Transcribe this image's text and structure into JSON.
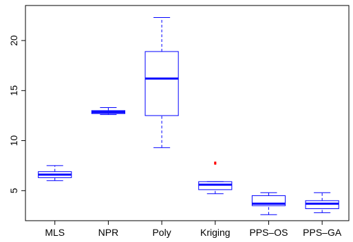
{
  "chart_data": {
    "type": "boxplot",
    "title": "",
    "xlabel": "",
    "ylabel": "",
    "ylim": [
      2.0,
      23.5
    ],
    "yticks": [
      5,
      10,
      15,
      20
    ],
    "ytick_labels": [
      "5",
      "10",
      "15",
      "20"
    ],
    "grid": false,
    "legend": "none",
    "box_color": "#0000ff",
    "outlier_color": "#ff0000",
    "categories": [
      "MLS",
      "NPR",
      "Poly",
      "Kriging",
      "PPS–OS",
      "PPS–GA"
    ],
    "boxes": [
      {
        "label": "MLS",
        "whisker_low": 6.0,
        "q1": 6.3,
        "median": 6.6,
        "q3": 6.9,
        "whisker_high": 7.5,
        "outliers": []
      },
      {
        "label": "NPR",
        "whisker_low": 12.6,
        "q1": 12.7,
        "median": 12.85,
        "q3": 13.0,
        "whisker_high": 13.3,
        "outliers": []
      },
      {
        "label": "Poly",
        "whisker_low": 9.3,
        "q1": 12.5,
        "median": 16.2,
        "q3": 18.9,
        "whisker_high": 22.3,
        "outliers": []
      },
      {
        "label": "Kriging",
        "whisker_low": 4.7,
        "q1": 5.1,
        "median": 5.6,
        "q3": 5.9,
        "whisker_high": 5.9,
        "outliers": [
          7.7,
          7.8
        ]
      },
      {
        "label": "PPS–OS",
        "whisker_low": 2.6,
        "q1": 3.5,
        "median": 3.7,
        "q3": 4.5,
        "whisker_high": 4.8,
        "outliers": []
      },
      {
        "label": "PPS–GA",
        "whisker_low": 2.8,
        "q1": 3.2,
        "median": 3.7,
        "q3": 4.0,
        "whisker_high": 4.8,
        "outliers": []
      }
    ]
  }
}
